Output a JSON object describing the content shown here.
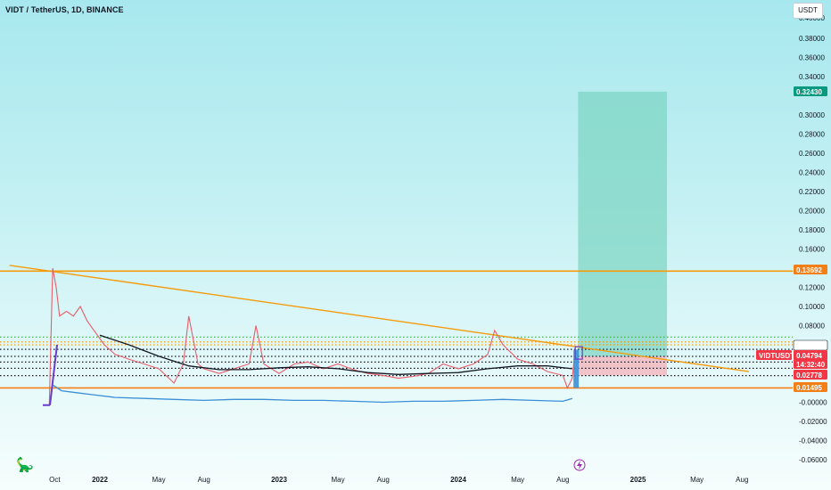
{
  "header": {
    "symbol_title": "VIDT / TetherUS, 1D, BINANCE",
    "currency_button": "USDT"
  },
  "logo_icon": "tradingview-dino-icon",
  "lightning_icon": "lightning-icon",
  "colors": {
    "background_top": "#a7e8ee",
    "orange_line": "#f59b0a",
    "price_red": "#f23645",
    "target_green": "#089981",
    "support_orange": "#f57f17",
    "long_target_zone": "#7fd5c4",
    "stop_zone": "#f2b5bd",
    "purple_candle": "#6a3cc9"
  },
  "chart_data": {
    "type": "line",
    "title": "VIDT / TetherUS, 1D, BINANCE",
    "xlabel": "",
    "ylabel": "",
    "y_axis": {
      "ylim": [
        -0.065,
        0.41
      ],
      "ticks": [
        0.38,
        0.36,
        0.34,
        0.3,
        0.28,
        0.26,
        0.24,
        0.22,
        0.2,
        0.18,
        0.16,
        0.12,
        0.1,
        0.08,
        0.06,
        -0.0,
        -0.02,
        -0.04,
        -0.06
      ],
      "tick_labels": [
        "0.38000",
        "0.36000",
        "0.34000",
        "0.30000",
        "0.28000",
        "0.26000",
        "0.24000",
        "0.22000",
        "0.20000",
        "0.18000",
        "0.16000",
        "0.12000",
        "0.10000",
        "0.08000",
        "0.06000",
        "-0.00000",
        "-0.02000",
        "-0.04000",
        "-0.06000"
      ],
      "top_clipped_label": "0.40000"
    },
    "x_axis": {
      "labels": [
        "Oct",
        "2022",
        "May",
        "Aug",
        "2023",
        "May",
        "Aug",
        "2024",
        "May",
        "Aug",
        "2025",
        "May",
        "Aug"
      ]
    },
    "price_tags": [
      {
        "label": "0.32430",
        "value": 0.3243,
        "color": "#089981"
      },
      {
        "label": "0.13692",
        "value": 0.13692,
        "color": "#f57f17"
      },
      {
        "label": "0.05520",
        "value": 0.0552,
        "color": "#ffffff"
      },
      {
        "label": "VIDTUSDT",
        "value": 0.048,
        "color": "#f23645"
      },
      {
        "label": "0.04794",
        "value": 0.04794,
        "color": "#f23645"
      },
      {
        "label": "14:32:40",
        "value": 0.0385,
        "color": "#f23645"
      },
      {
        "label": "0.02778",
        "value": 0.02778,
        "color": "#f23645"
      },
      {
        "label": "0.01495",
        "value": 0.01495,
        "color": "#f57f17"
      }
    ],
    "horizontal_levels": [
      {
        "value": 0.13692,
        "style": "solid",
        "color": "#f59b0a"
      },
      {
        "value": 0.01495,
        "style": "solid",
        "color": "#f57f17"
      },
      {
        "value": 0.0552,
        "style": "dotted",
        "color": "#131722"
      },
      {
        "value": 0.04794,
        "style": "dotted",
        "color": "#131722"
      },
      {
        "value": 0.042,
        "style": "dotted",
        "color": "#131722"
      },
      {
        "value": 0.0355,
        "style": "dotted",
        "color": "#131722"
      },
      {
        "value": 0.02778,
        "style": "dotted",
        "color": "#131722"
      },
      {
        "value": 0.068,
        "style": "dotted",
        "color": "#4caf50"
      },
      {
        "value": 0.063,
        "style": "dotted",
        "color": "#f59b0a"
      },
      {
        "value": 0.06,
        "style": "dotted",
        "color": "#f59b0a"
      }
    ],
    "series": [
      {
        "kind": "price",
        "color": "#e85d6a",
        "x": [
          "2021-09-20",
          "2021-09-27",
          "2021-10-04",
          "2021-10-11",
          "2021-10-25",
          "2021-11-08",
          "2021-11-22",
          "2021-12-06",
          "2021-12-20",
          "2022-01-10",
          "2022-02-01",
          "2022-03-01",
          "2022-04-01",
          "2022-05-01",
          "2022-06-01",
          "2022-06-20",
          "2022-07-01",
          "2022-07-20",
          "2022-08-01",
          "2022-09-01",
          "2022-10-01",
          "2022-11-01",
          "2022-11-15",
          "2022-12-01",
          "2023-01-01",
          "2023-02-01",
          "2023-03-01",
          "2023-04-01",
          "2023-05-01",
          "2023-06-01",
          "2023-07-01",
          "2023-08-01",
          "2023-09-01",
          "2023-10-01",
          "2023-11-01",
          "2023-12-01",
          "2024-01-01",
          "2024-02-01",
          "2024-03-01",
          "2024-03-15",
          "2024-04-01",
          "2024-05-01",
          "2024-06-01",
          "2024-07-01",
          "2024-08-01",
          "2024-08-10",
          "2024-08-20",
          "2024-08-26"
        ],
        "y": [
          -0.003,
          0.14,
          0.12,
          0.09,
          0.095,
          0.09,
          0.1,
          0.085,
          0.075,
          0.06,
          0.05,
          0.045,
          0.04,
          0.035,
          0.02,
          0.04,
          0.09,
          0.04,
          0.035,
          0.03,
          0.035,
          0.04,
          0.08,
          0.04,
          0.03,
          0.04,
          0.042,
          0.035,
          0.04,
          0.034,
          0.03,
          0.028,
          0.025,
          0.027,
          0.03,
          0.04,
          0.035,
          0.04,
          0.05,
          0.075,
          0.06,
          0.045,
          0.04,
          0.032,
          0.028,
          0.015,
          0.025,
          0.055
        ]
      },
      {
        "kind": "moving-average",
        "color": "#131722",
        "x": [
          "2022-01-01",
          "2022-03-01",
          "2022-05-01",
          "2022-07-01",
          "2022-09-01",
          "2022-11-01",
          "2023-01-01",
          "2023-03-01",
          "2023-05-01",
          "2023-07-01",
          "2023-09-01",
          "2023-11-01",
          "2024-01-01",
          "2024-03-01",
          "2024-05-01",
          "2024-07-01",
          "2024-08-20"
        ],
        "y": [
          0.07,
          0.06,
          0.048,
          0.038,
          0.034,
          0.034,
          0.036,
          0.037,
          0.035,
          0.031,
          0.029,
          0.03,
          0.031,
          0.035,
          0.038,
          0.038,
          0.035
        ]
      },
      {
        "kind": "lower-band",
        "color": "#3c8fd6",
        "x": [
          "2021-09-27",
          "2021-10-15",
          "2021-11-15",
          "2021-12-15",
          "2022-02-01",
          "2022-04-01",
          "2022-06-01",
          "2022-08-01",
          "2022-10-01",
          "2022-12-01",
          "2023-02-01",
          "2023-04-01",
          "2023-06-01",
          "2023-08-01",
          "2023-10-01",
          "2023-12-01",
          "2024-02-01",
          "2024-04-01",
          "2024-06-01",
          "2024-08-01",
          "2024-08-20"
        ],
        "y": [
          0.018,
          0.012,
          0.01,
          0.008,
          0.005,
          0.004,
          0.003,
          0.002,
          0.003,
          0.003,
          0.002,
          0.002,
          0.001,
          0.0,
          0.001,
          0.001,
          0.002,
          0.003,
          0.002,
          0.001,
          0.004
        ]
      }
    ],
    "trendline": {
      "from": {
        "x": "2021-07-01",
        "y": 0.143
      },
      "to": {
        "x": "2025-08-15",
        "y": 0.032
      },
      "color": "#f59b0a"
    },
    "position_tool": {
      "entry": 0.04794,
      "target": 0.3243,
      "stop": 0.02778,
      "start": "2024-09-01",
      "end": "2025-03-01"
    },
    "current_price": 0.04794,
    "current_price_label": "VIDTUSDT",
    "countdown": "14:32:40"
  }
}
